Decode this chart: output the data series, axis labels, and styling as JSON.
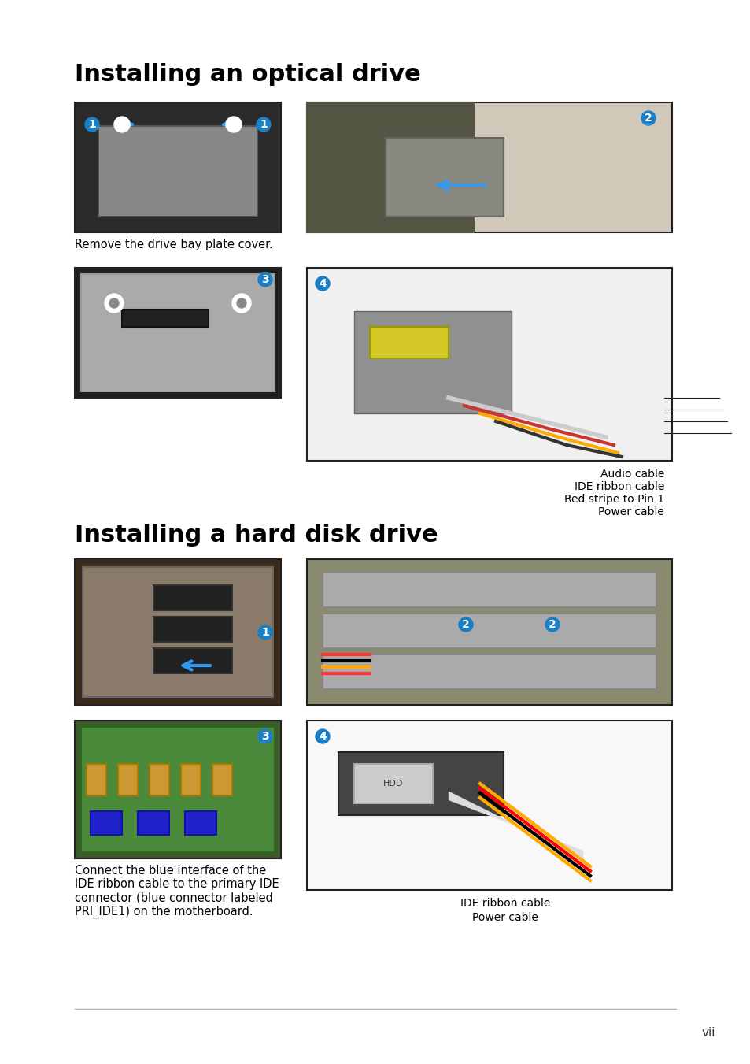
{
  "title1": "Installing an optical drive",
  "title2": "Installing a hard disk drive",
  "bg_color": "#ffffff",
  "text_color": "#000000",
  "title_fontsize": 22,
  "body_fontsize": 10.5,
  "caption_fontsize": 10.5,
  "annotation_fontsize": 10,
  "page_number": "vii",
  "caption1": "Remove the drive bay plate cover.",
  "caption2": "Connect the blue interface of the\nIDE ribbon cable to the primary IDE\nconnector (blue connector labeled\nPRI_IDE1) on the motherboard.",
  "opt_labels": [
    "Audio cable",
    "IDE ribbon cable",
    "Red stripe to Pin 1",
    "Power cable"
  ],
  "hdd_labels": [
    "IDE ribbon cable",
    "Power cable"
  ],
  "font_family": "DejaVu Sans",
  "border_color": "#222222",
  "step_color": "#1a7fc4",
  "step_text_color": "#ffffff",
  "line_color": "#aaaaaa"
}
